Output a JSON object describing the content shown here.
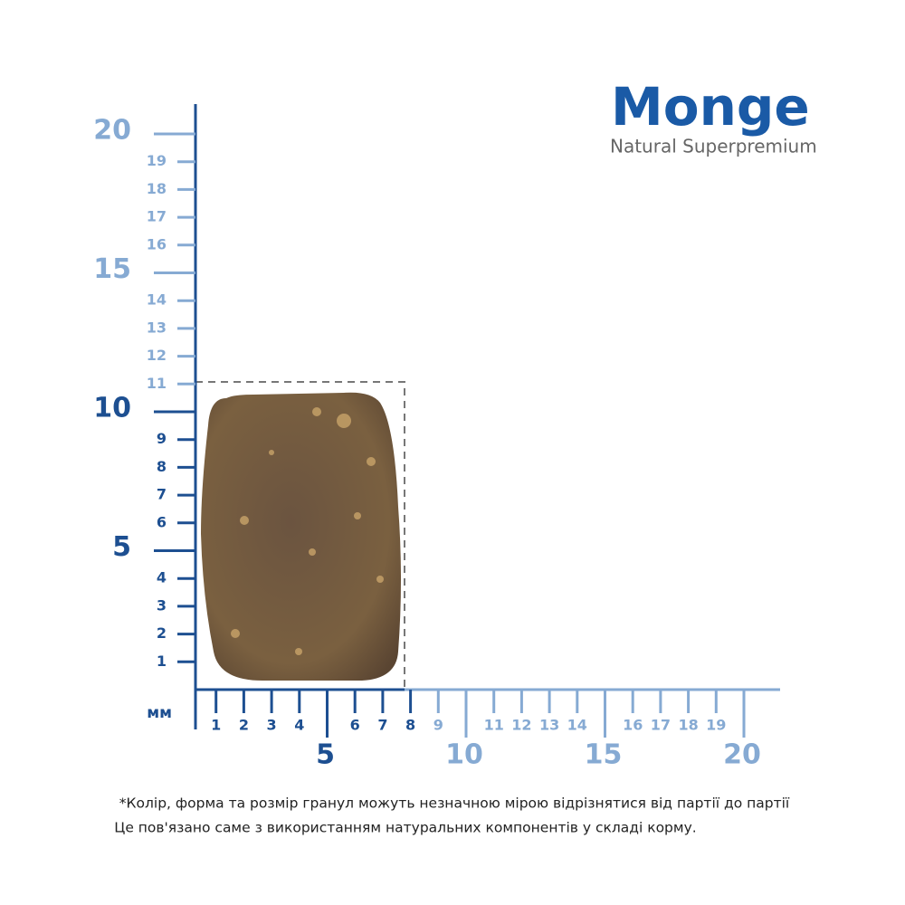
{
  "logo": {
    "brand": "Monge",
    "tagline": "Natural Superpremium"
  },
  "ruler": {
    "unit": "мм",
    "x_axis": {
      "dark_minor": [
        1,
        2,
        3,
        4,
        6,
        7,
        8
      ],
      "light_minor": [
        9,
        11,
        12,
        13,
        14,
        16,
        17,
        18,
        19
      ],
      "dark_major": [
        5
      ],
      "light_major": [
        10,
        15,
        20
      ]
    },
    "y_axis": {
      "dark_minor": [
        1,
        2,
        3,
        4,
        6,
        7,
        8,
        9
      ],
      "light_minor": [
        11,
        12,
        13,
        14,
        16,
        17,
        18,
        19
      ],
      "dark_major": [
        5,
        10
      ],
      "light_major": [
        15,
        20
      ]
    }
  },
  "footnote": [
    "*Колір, форма та розмір гранул можуть незначною мірою відрізнятися від партії до партії",
    "Це пов'язано саме з використанням натуральних компонентів у складі корму."
  ]
}
